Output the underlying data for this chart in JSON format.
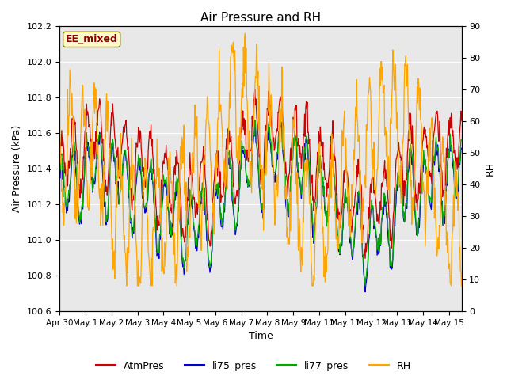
{
  "title": "Air Pressure and RH",
  "xlabel": "Time",
  "ylabel_left": "Air Pressure (kPa)",
  "ylabel_right": "RH",
  "ylim_left": [
    100.6,
    102.2
  ],
  "ylim_right": [
    0,
    90
  ],
  "yticks_left": [
    100.6,
    100.8,
    101.0,
    101.2,
    101.4,
    101.6,
    101.8,
    102.0,
    102.2
  ],
  "yticks_right": [
    0,
    10,
    20,
    30,
    40,
    50,
    60,
    70,
    80,
    90
  ],
  "annotation_text": "EE_mixed",
  "annotation_color": "#8B0000",
  "annotation_bg": "#FFFACD",
  "bg_color": "#E8E8E8",
  "line_colors": {
    "AtmPres": "#CC0000",
    "li75_pres": "#0000CC",
    "li77_pres": "#00AA00",
    "RH": "#FFA500"
  },
  "legend_labels": [
    "AtmPres",
    "li75_pres",
    "li77_pres",
    "RH"
  ],
  "n_days": 15.5,
  "figsize": [
    6.4,
    4.8
  ],
  "dpi": 100
}
